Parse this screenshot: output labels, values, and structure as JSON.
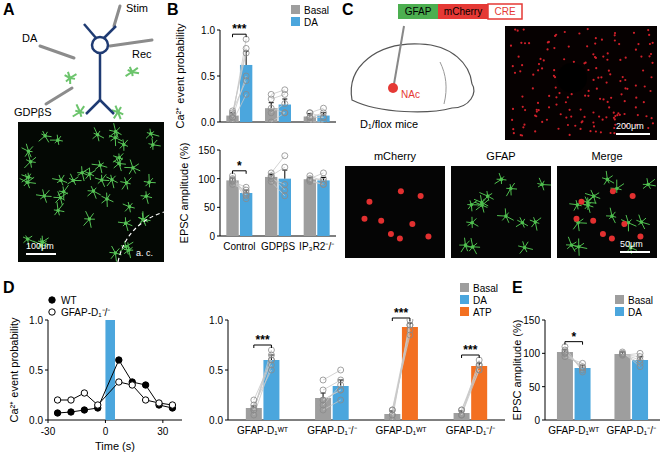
{
  "figure": {
    "panel_labels": [
      "A",
      "B",
      "C",
      "D",
      "E"
    ]
  },
  "schematic": {
    "labels": [
      "DA",
      "Stim",
      "Rec",
      "GDPβS"
    ]
  },
  "micrograph_a": {
    "scale_bar": "100μm",
    "region": "a. c."
  },
  "construct": {
    "parts": [
      "GFAP",
      "mCherry",
      "CRE"
    ]
  },
  "injection": {
    "region": "NAc",
    "mouse": "D₁/flox mice",
    "scale_bar": "200μm"
  },
  "micrographs_c": {
    "titles": [
      "mCherry",
      "GFAP",
      "Merge"
    ],
    "scale_bar": "50μm"
  },
  "chart_data": [
    {
      "type": "bar",
      "y_label": "Ca²⁺ event probability",
      "categories": [
        null,
        null,
        null
      ],
      "tick_labels": "y",
      "legend": "top-right",
      "ylim": [
        0,
        1
      ],
      "yticks": [
        {
          "value": 0,
          "label": "0.0"
        },
        {
          "value": 0.5,
          "label": "0.5"
        },
        {
          "value": 1,
          "label": "1.0"
        }
      ],
      "series": [
        {
          "name": "Basal",
          "color": "#9e9e9e",
          "values": [
            0.07,
            0.15,
            0.06
          ],
          "errors": [
            0.03,
            0.06,
            0.03
          ],
          "points": [
            [
              0.05,
              0.1,
              0.0,
              0.12,
              0.08,
              0.05
            ],
            [
              0.0,
              0.3,
              0.1,
              0.25,
              0.15
            ],
            [
              0.0,
              0.1,
              0.05,
              0.1,
              0.05
            ]
          ]
        },
        {
          "name": "DA",
          "color": "#4ba6dd",
          "values": [
            0.62,
            0.19,
            0.07
          ],
          "errors": [
            0.15,
            0.06,
            0.03
          ],
          "points": [
            [
              0.9,
              0.75,
              0.3,
              0.45,
              0.8,
              0.5
            ],
            [
              0.1,
              0.35,
              0.2,
              0.3,
              0.1
            ],
            [
              0.0,
              0.15,
              0.1,
              0.05,
              0.05
            ]
          ]
        }
      ],
      "significance": [
        {
          "category": 0,
          "label": "***"
        }
      ]
    },
    {
      "type": "bar",
      "y_label": "EPSC amplitude (%)",
      "categories": [
        "Control",
        "GDPβS",
        "IP₃R2⁻/⁻"
      ],
      "ylim": [
        0,
        150
      ],
      "yticks": [
        0,
        50,
        100,
        150
      ],
      "series": [
        {
          "color": "#9e9e9e",
          "values": [
            97,
            103,
            99
          ],
          "errors": [
            4,
            4,
            3
          ],
          "points": [
            [
              105,
              90,
              100,
              95,
              98,
              96
            ],
            [
              110,
              95,
              100,
              105,
              104
            ],
            [
              100,
              95,
              105,
              98,
              97
            ]
          ]
        },
        {
          "color": "#4ba6dd",
          "values": [
            75,
            100,
            97
          ],
          "errors": [
            5,
            15,
            5
          ],
          "points": [
            [
              70,
              80,
              65,
              85,
              75,
              72
            ],
            [
              140,
              70,
              90,
              120,
              80
            ],
            [
              110,
              90,
              95,
              100,
              90
            ]
          ]
        }
      ],
      "significance": [
        {
          "category": 0,
          "label": "*"
        }
      ]
    },
    {
      "type": "line",
      "x_label": "Time (s)",
      "y_label": "Ca²⁺ event probability",
      "legend": "top-left",
      "x": [
        -25,
        -18,
        -11,
        -4,
        7,
        14,
        21,
        28,
        35
      ],
      "xlim": [
        -30,
        40
      ],
      "xticks": [
        -30,
        0,
        30
      ],
      "ylim": [
        0,
        1
      ],
      "yticks": [
        {
          "value": 0,
          "label": "0.0"
        },
        {
          "value": 0.5,
          "label": "0.5"
        },
        {
          "value": 1,
          "label": "1.0"
        }
      ],
      "shaded_x": [
        0,
        5
      ],
      "series": [
        {
          "name": "WT",
          "color": "#000000",
          "marker": "filled_circle",
          "values": [
            0.07,
            0.08,
            0.1,
            0.12,
            0.6,
            0.38,
            0.35,
            0.15,
            0.12
          ]
        },
        {
          "name": "GFAP-D₁⁻/⁻",
          "color": "#000000",
          "marker": "open_circle",
          "values": [
            0.2,
            0.2,
            0.27,
            0.15,
            0.38,
            0.35,
            0.2,
            0.17,
            0.15
          ]
        }
      ]
    },
    {
      "type": "bar",
      "categories": [
        "GFAP-D₁ᵂᵀ",
        "GFAP-D₁⁻/⁻",
        "GFAP-D₁ᵂᵀ",
        "GFAP-D₁⁻/⁻"
      ],
      "legend": "top-right",
      "ylim": [
        0,
        1
      ],
      "yticks": [
        {
          "value": 0,
          "label": "0.0"
        },
        {
          "value": 0.5,
          "label": "0.5"
        },
        {
          "value": 1,
          "label": "1.0"
        }
      ],
      "series": [
        {
          "name": "Basal",
          "color": "#9e9e9e",
          "values": [
            0.12,
            0.22,
            0.06,
            0.07
          ],
          "errors": [
            0.02,
            0.05,
            0.03,
            0.02
          ],
          "points": [
            [
              0.1,
              0.15,
              0.1,
              0.05,
              0.12,
              0.2
            ],
            [
              0.1,
              0.4,
              0.2,
              0.3,
              0.15,
              0.2
            ],
            [
              0.0,
              0.05,
              0.1,
              0.1,
              0.05
            ],
            [
              0.05,
              0.1,
              0.05,
              0.1,
              0.05
            ]
          ]
        },
        {
          "name": "DA",
          "color": "#4ba6dd",
          "values": [
            0.6,
            0.34,
            null,
            null
          ],
          "errors": [
            0.05,
            0.06,
            null,
            null
          ],
          "points": [
            [
              0.7,
              0.5,
              0.65,
              0.55,
              0.6,
              0.6
            ],
            [
              0.2,
              0.5,
              0.3,
              0.4,
              0.35,
              0.3
            ],
            null,
            null
          ]
        },
        {
          "name": "ATP",
          "color": "#f37021",
          "values": [
            null,
            null,
            0.93,
            0.54
          ],
          "errors": [
            null,
            null,
            0.04,
            0.03
          ],
          "points": [
            null,
            null,
            [
              1.0,
              0.9,
              0.85,
              0.95,
              0.95
            ],
            [
              0.5,
              0.55,
              0.6,
              0.5,
              0.55
            ]
          ]
        }
      ],
      "significance": [
        {
          "category": 0,
          "label": "***"
        },
        {
          "category": 2,
          "label": "***"
        },
        {
          "category": 3,
          "label": "***"
        }
      ]
    },
    {
      "type": "bar",
      "y_label": "EPSC amplitude (%)",
      "categories": [
        "GFAP-D₁ᵂᵀ",
        "GFAP-D₁⁻/⁻"
      ],
      "legend": "top-right",
      "ylim": [
        0,
        150
      ],
      "yticks": [
        0,
        50,
        100,
        150
      ],
      "series": [
        {
          "name": "Basal",
          "color": "#9e9e9e",
          "values": [
            102,
            99
          ],
          "errors": [
            4,
            3
          ],
          "points": [
            [
              110,
              100,
              95,
              105,
              100,
              102
            ],
            [
              100,
              98,
              102,
              97,
              99
            ]
          ]
        },
        {
          "name": "DA",
          "color": "#4ba6dd",
          "values": [
            78,
            90
          ],
          "errors": [
            4,
            5
          ],
          "points": [
            [
              72,
              80,
              85,
              75,
              78,
              78
            ],
            [
              85,
              95,
              80,
              100,
              90
            ]
          ]
        }
      ],
      "significance": [
        {
          "category": 0,
          "label": "*"
        }
      ]
    }
  ]
}
